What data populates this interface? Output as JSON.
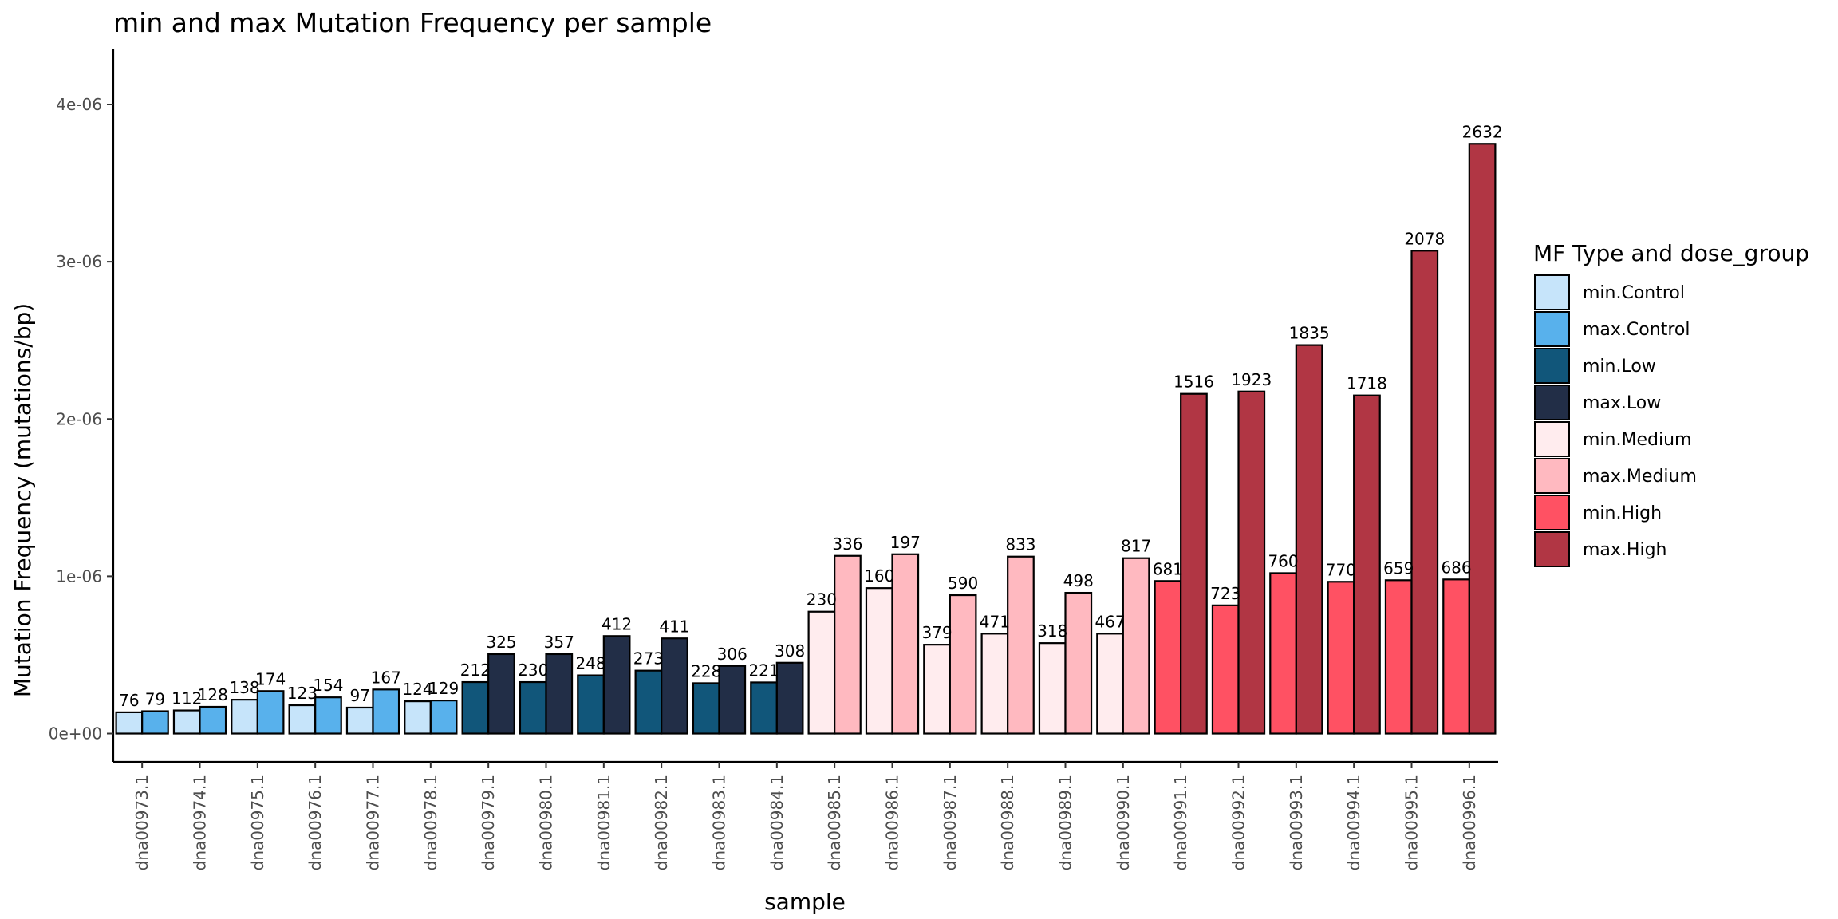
{
  "chart_data": {
    "type": "bar",
    "title": "min and max Mutation Frequency per sample",
    "xlabel": "sample",
    "ylabel": "Mutation Frequency (mutations/bp)",
    "ylim": [
      -1.8e-07,
      4.35e-06
    ],
    "yticks": [
      {
        "value": 0,
        "label": "0e+00"
      },
      {
        "value": 1e-06,
        "label": "1e-06"
      },
      {
        "value": 2e-06,
        "label": "2e-06"
      },
      {
        "value": 3e-06,
        "label": "3e-06"
      },
      {
        "value": 4e-06,
        "label": "4e-06"
      }
    ],
    "grid": false,
    "legend": {
      "title": "MF Type and dose_group",
      "position": "right",
      "items": [
        {
          "label": "min.Control",
          "color": "#C6E4FA"
        },
        {
          "label": "max.Control",
          "color": "#58B1EC"
        },
        {
          "label": "min.Low",
          "color": "#11567A"
        },
        {
          "label": "max.Low",
          "color": "#222E47"
        },
        {
          "label": "min.Medium",
          "color": "#FFECEE"
        },
        {
          "label": "max.Medium",
          "color": "#FFB9C0"
        },
        {
          "label": "min.High",
          "color": "#FF5163"
        },
        {
          "label": "max.High",
          "color": "#B13644"
        }
      ]
    },
    "categories": [
      "dna00973.1",
      "dna00974.1",
      "dna00975.1",
      "dna00976.1",
      "dna00977.1",
      "dna00978.1",
      "dna00979.1",
      "dna00980.1",
      "dna00981.1",
      "dna00982.1",
      "dna00983.1",
      "dna00984.1",
      "dna00985.1",
      "dna00986.1",
      "dna00987.1",
      "dna00988.1",
      "dna00989.1",
      "dna00990.1",
      "dna00991.1",
      "dna00992.1",
      "dna00993.1",
      "dna00994.1",
      "dna00995.1",
      "dna00996.1"
    ],
    "dose_group": [
      "Control",
      "Control",
      "Control",
      "Control",
      "Control",
      "Control",
      "Low",
      "Low",
      "Low",
      "Low",
      "Low",
      "Low",
      "Medium",
      "Medium",
      "Medium",
      "Medium",
      "Medium",
      "Medium",
      "High",
      "High",
      "High",
      "High",
      "High",
      "High"
    ],
    "series": [
      {
        "name": "min",
        "values": [
          1.35e-07,
          1.47e-07,
          2.15e-07,
          1.8e-07,
          1.65e-07,
          2.05e-07,
          3.27e-07,
          3.27e-07,
          3.7e-07,
          4e-07,
          3.2e-07,
          3.25e-07,
          7.75e-07,
          9.25e-07,
          5.65e-07,
          6.35e-07,
          5.75e-07,
          6.35e-07,
          9.7e-07,
          8.15e-07,
          1.02e-06,
          9.65e-07,
          9.75e-07,
          9.8e-07
        ],
        "labels": [
          "76",
          "112",
          "138",
          "123",
          "97",
          "124",
          "212",
          "230",
          "248",
          "273",
          "228",
          "221",
          "230",
          "160",
          "379",
          "471",
          "318",
          "467",
          "681",
          "723",
          "760",
          "770",
          "659",
          "686"
        ]
      },
      {
        "name": "max",
        "values": [
          1.42e-07,
          1.7e-07,
          2.7e-07,
          2.3e-07,
          2.8e-07,
          2.1e-07,
          5.05e-07,
          5.05e-07,
          6.2e-07,
          6.05e-07,
          4.3e-07,
          4.5e-07,
          1.13e-06,
          1.14e-06,
          8.8e-07,
          1.125e-06,
          8.95e-07,
          1.115e-06,
          2.16e-06,
          2.175e-06,
          2.47e-06,
          2.15e-06,
          3.07e-06,
          3.75e-06
        ],
        "labels": [
          "79",
          "128",
          "174",
          "154",
          "167",
          "129",
          "325",
          "357",
          "412",
          "411",
          "306",
          "308",
          "336",
          "197",
          "590",
          "833",
          "498",
          "817",
          "1516",
          "1923",
          "1835",
          "1718",
          "2078",
          "2632"
        ]
      }
    ]
  }
}
